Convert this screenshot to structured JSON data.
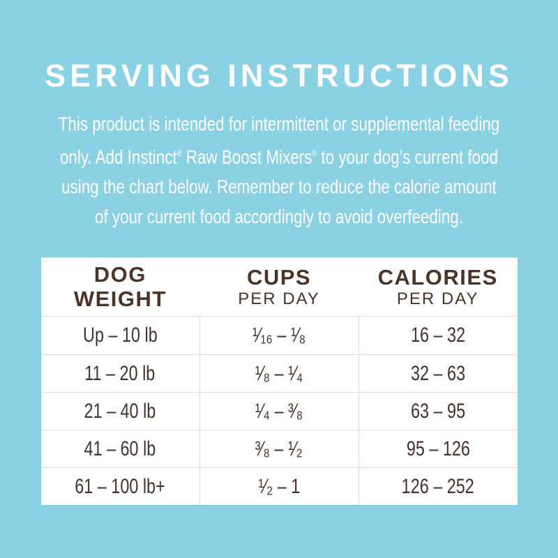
{
  "title": "SERVING INSTRUCTIONS",
  "intro": {
    "line1": "This product is intended for intermittent or supplemental feeding",
    "line2a": "only. Add Instinct",
    "reg_mark": "®",
    "line2b": " Raw Boost Mixers",
    "line2c": " to your dog’s current food",
    "line3": "using the chart below. Remember to reduce the calorie amount",
    "line4": "of your current food accordingly to avoid overfeeding."
  },
  "table": {
    "columns": [
      {
        "line1": "DOG",
        "line2": "WEIGHT"
      },
      {
        "line1": "CUPS",
        "line2": "PER DAY"
      },
      {
        "line1": "CALORIES",
        "line2": "PER DAY"
      }
    ],
    "rows": [
      {
        "weight": "Up – 10 lb",
        "cups": "¹⁄₁₆ – ¹⁄₈",
        "calories": "16 – 32"
      },
      {
        "weight": "11 – 20 lb",
        "cups": "¹⁄₈ – ¹⁄₄",
        "calories": "32 – 63"
      },
      {
        "weight": "21 – 40 lb",
        "cups": "¹⁄₄ – ³⁄₈",
        "calories": "63 – 95"
      },
      {
        "weight": "41 – 60 lb",
        "cups": "³⁄₈ – ¹⁄₂",
        "calories": "95 – 126"
      },
      {
        "weight": "61 – 100 lb+",
        "cups": "¹⁄₂ – 1",
        "calories": "126 – 252"
      }
    ]
  },
  "colors": {
    "background": "#8bd1e4",
    "panel": "#ffffff",
    "heading_text": "#ffffff",
    "table_header_text": "#4d3226",
    "table_body_text": "#44312a",
    "table_border": "#dcdcdc"
  }
}
